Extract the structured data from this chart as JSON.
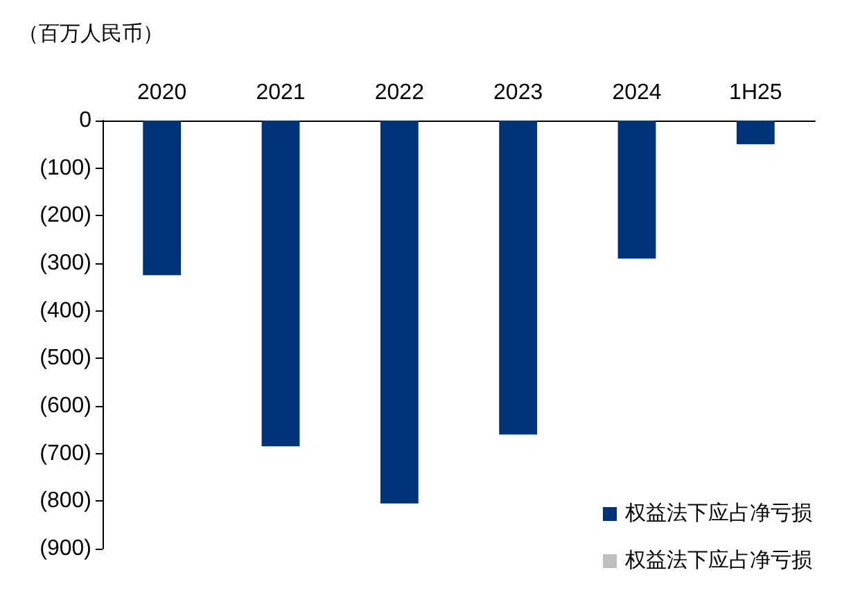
{
  "chart_data": {
    "type": "bar",
    "ylabel": "（百万人民币）",
    "categories": [
      "2020",
      "2021",
      "2022",
      "2023",
      "2024",
      "1H25"
    ],
    "series": [
      {
        "name": "权益法下应占净亏损",
        "color": "#003478",
        "values": [
          -325,
          -685,
          -805,
          -660,
          -290,
          -50
        ]
      },
      {
        "name": "权益法下应占净亏损",
        "color": "#bfbfbf",
        "values": [
          0,
          0,
          0,
          0,
          0,
          0
        ]
      }
    ],
    "ylim": [
      -900,
      0
    ],
    "yticks": [
      {
        "value": 0,
        "label": "0"
      },
      {
        "value": -100,
        "label": "(100)"
      },
      {
        "value": -200,
        "label": "(200)"
      },
      {
        "value": -300,
        "label": "(300)"
      },
      {
        "value": -400,
        "label": "(400)"
      },
      {
        "value": -500,
        "label": "(500)"
      },
      {
        "value": -600,
        "label": "(600)"
      },
      {
        "value": -700,
        "label": "(700)"
      },
      {
        "value": -800,
        "label": "(800)"
      },
      {
        "value": -900,
        "label": "(900)"
      }
    ],
    "grid": false,
    "legend": "bottom right"
  }
}
